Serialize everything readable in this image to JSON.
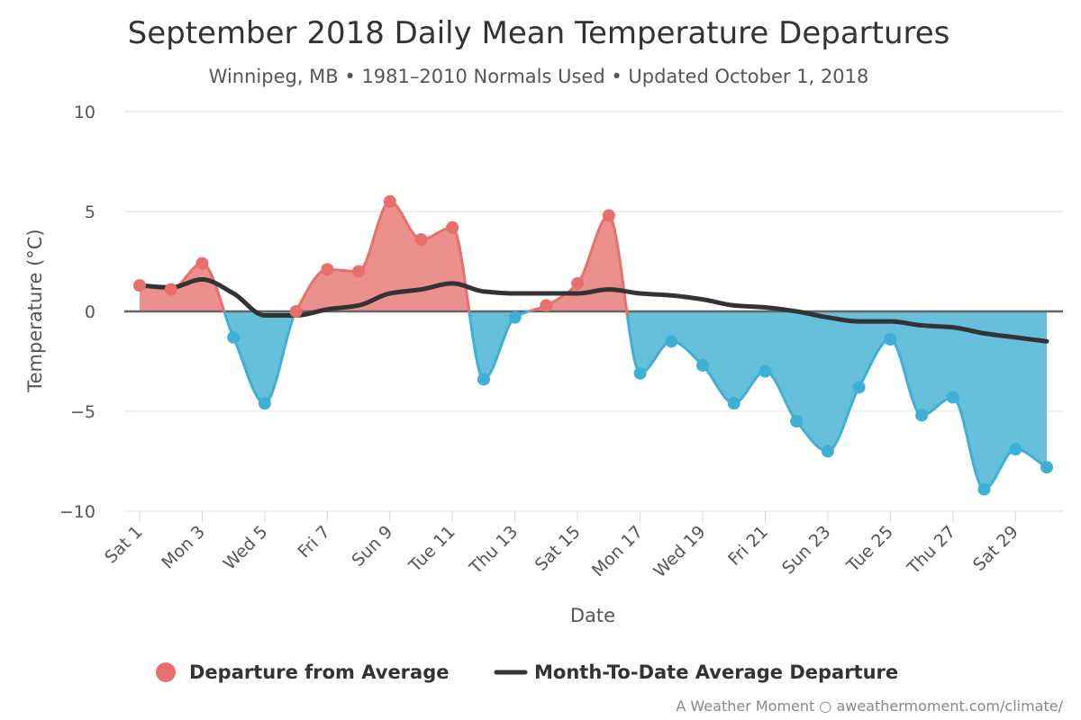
{
  "chart_data": {
    "type": "area",
    "title": "September 2018 Daily Mean Temperature Departures",
    "subtitle": "Winnipeg, MB • 1981–2010 Normals Used • Updated October 1, 2018",
    "xlabel": "Date",
    "ylabel": "Temperature (°C)",
    "ylim": [
      -10,
      10
    ],
    "yticks": [
      10,
      5,
      0,
      -5,
      -10
    ],
    "grid": true,
    "legend_position": "bottom",
    "x": [
      1,
      2,
      3,
      4,
      5,
      6,
      7,
      8,
      9,
      10,
      11,
      12,
      13,
      14,
      15,
      16,
      17,
      18,
      19,
      20,
      21,
      22,
      23,
      24,
      25,
      26,
      27,
      28,
      29,
      30
    ],
    "x_tick_days": [
      1,
      3,
      5,
      7,
      9,
      11,
      13,
      15,
      17,
      19,
      21,
      23,
      25,
      27,
      29
    ],
    "x_tick_labels": [
      "Sat 1",
      "Mon 3",
      "Wed 5",
      "Fri 7",
      "Sun 9",
      "Tue 11",
      "Thu 13",
      "Sat 15",
      "Mon 17",
      "Wed 19",
      "Fri 21",
      "Sun 23",
      "Tue 25",
      "Thu 27",
      "Sat 29"
    ],
    "series": [
      {
        "name": "Departure from Average",
        "values": [
          1.3,
          1.1,
          2.4,
          -1.3,
          -4.6,
          0.0,
          2.1,
          2.0,
          5.5,
          3.6,
          4.2,
          -3.4,
          -0.3,
          0.3,
          1.4,
          4.8,
          -3.1,
          -1.5,
          -2.7,
          -4.6,
          -3.0,
          -5.5,
          -7.0,
          -3.8,
          -1.4,
          -5.2,
          -4.3,
          -8.9,
          -6.9,
          -7.8
        ],
        "color_positive": "#e8706c",
        "color_negative": "#3fb0d5",
        "fill_positive": "#eb908c",
        "fill_negative": "#66c0db"
      },
      {
        "name": "Month-To-Date Average Departure",
        "values": [
          1.3,
          1.2,
          1.6,
          0.9,
          -0.2,
          -0.2,
          0.1,
          0.3,
          0.9,
          1.1,
          1.4,
          1.0,
          0.9,
          0.9,
          0.9,
          1.1,
          0.9,
          0.8,
          0.6,
          0.3,
          0.2,
          0.0,
          -0.3,
          -0.5,
          -0.5,
          -0.7,
          -0.8,
          -1.1,
          -1.3,
          -1.5
        ],
        "color": "#333333"
      }
    ],
    "credit": "A Weather Moment ○ aweathermoment.com/climate/"
  }
}
